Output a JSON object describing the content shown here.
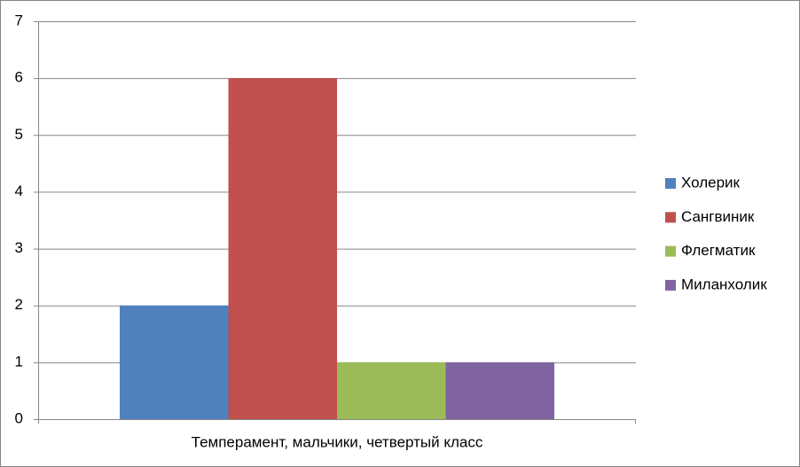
{
  "chart_data": {
    "type": "bar",
    "categories": [
      "Темперамент, мальчики, четвертый класс"
    ],
    "series": [
      {
        "name": "Холерик",
        "color": "#4f81bd",
        "values": [
          2
        ]
      },
      {
        "name": "Сангвиник",
        "color": "#c0504d",
        "values": [
          6
        ]
      },
      {
        "name": "Флегматик",
        "color": "#9bbb59",
        "values": [
          1
        ]
      },
      {
        "name": "Миланхолик",
        "color": "#8064a2",
        "values": [
          1
        ]
      }
    ],
    "ylim": [
      0,
      7
    ],
    "yticks": [
      0,
      1,
      2,
      3,
      4,
      5,
      6,
      7
    ],
    "grid": true,
    "legend": "right"
  }
}
